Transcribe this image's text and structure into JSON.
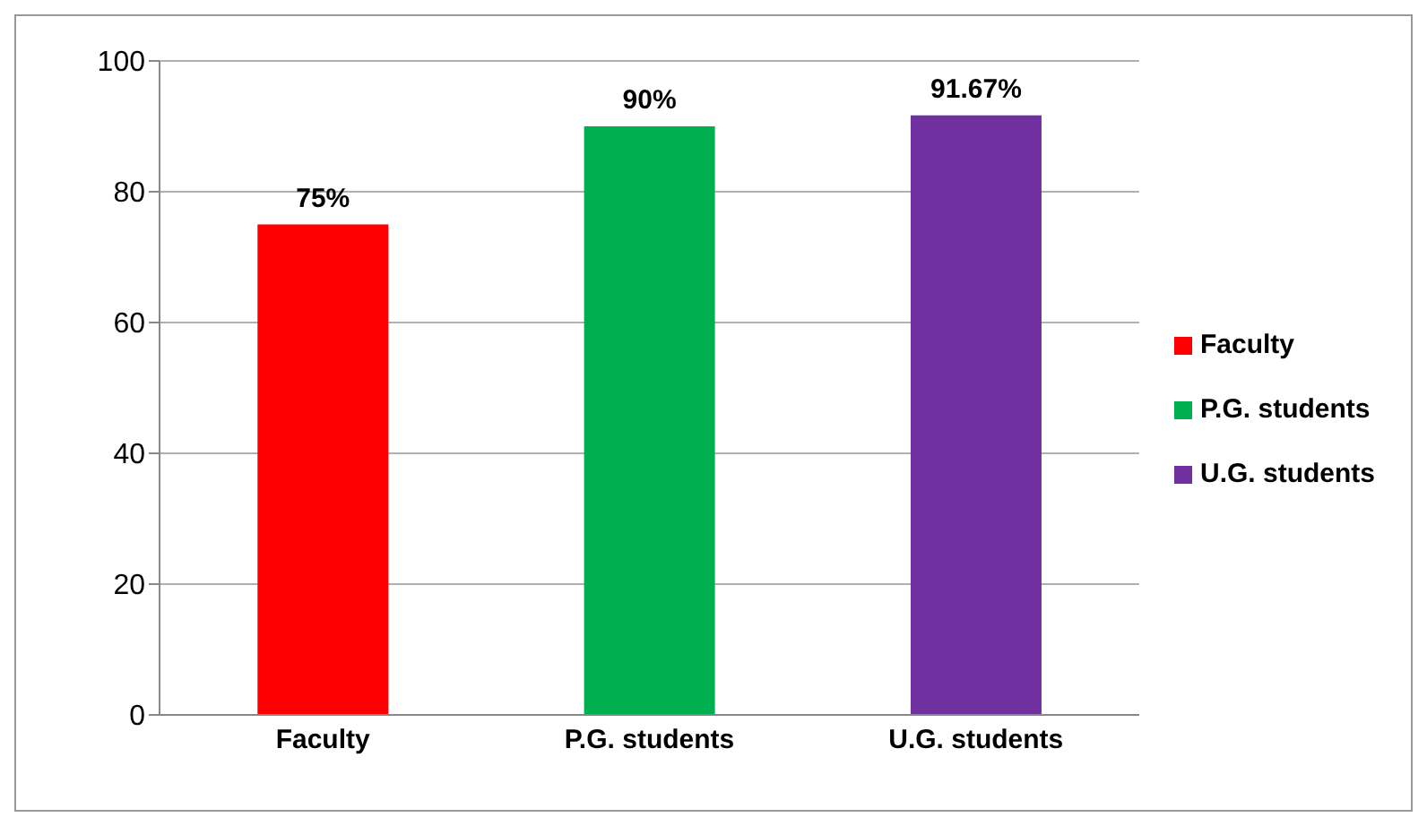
{
  "chart_data": {
    "type": "bar",
    "categories": [
      "Faculty",
      "P.G. students",
      "U.G. students"
    ],
    "series": [
      {
        "name": "Faculty",
        "color": "#ff0000",
        "values": [
          75,
          null,
          null
        ],
        "value_labels": [
          "75%",
          null,
          null
        ]
      },
      {
        "name": "P.G. students",
        "color": "#00b050",
        "values": [
          null,
          90,
          null
        ],
        "value_labels": [
          null,
          "90%",
          null
        ]
      },
      {
        "name": "U.G. students",
        "color": "#7030a0",
        "values": [
          null,
          null,
          91.67
        ],
        "value_labels": [
          null,
          null,
          "91.67%"
        ]
      }
    ],
    "stacked": true,
    "ylim": [
      0,
      100
    ],
    "yticks": [
      0,
      20,
      40,
      60,
      80,
      100
    ],
    "grid": "y",
    "legend": "right"
  }
}
